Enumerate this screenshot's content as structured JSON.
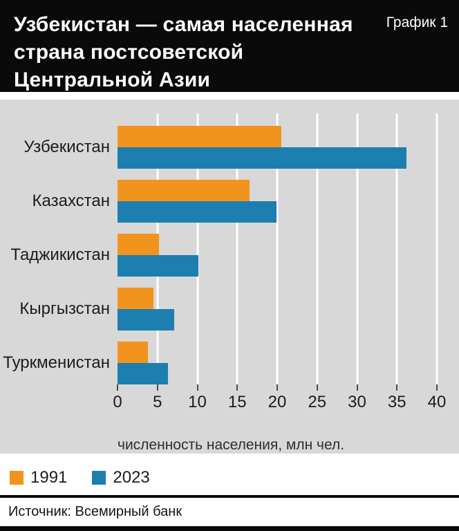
{
  "header": {
    "title_lines": [
      "Узбекистан — самая населенная",
      "страна постсоветской Центральной Азии"
    ],
    "chart_label": "График 1"
  },
  "chart_data": {
    "type": "bar",
    "orientation": "horizontal",
    "title": "Узбекистан — самая населенная страна постсоветской Центральной Азии",
    "categories": [
      "Узбекистан",
      "Казахстан",
      "Таджикистан",
      "Кыргызстан",
      "Туркменистан"
    ],
    "series": [
      {
        "name": "1991",
        "color": "#f0941e",
        "values": [
          20.5,
          16.5,
          5.2,
          4.5,
          3.8
        ]
      },
      {
        "name": "2023",
        "color": "#1d7eb0",
        "values": [
          36.2,
          19.9,
          10.1,
          7.1,
          6.3
        ]
      }
    ],
    "xlabel": "численность населения, млн чел.",
    "xlim": [
      0,
      40
    ],
    "xticks": [
      0,
      5,
      10,
      15,
      20,
      25,
      30,
      35,
      40
    ],
    "grid": true,
    "gridline_color": "#ffffff",
    "plot_background": "#d8d8d8",
    "legend_position": "bottom-left"
  },
  "footer": {
    "source": "Источник: Всемирный банк"
  }
}
